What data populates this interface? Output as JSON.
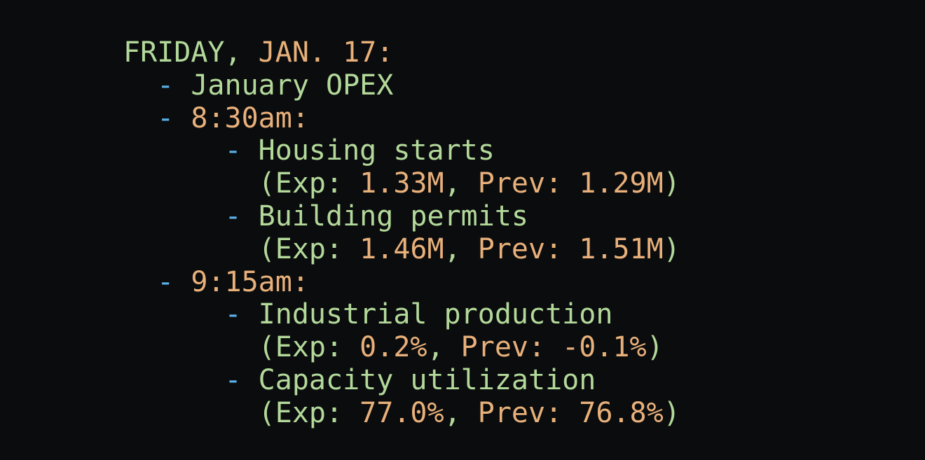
{
  "colors": {
    "text": "#b3d99a",
    "value": "#e8b07a",
    "bullet": "#5ab0e8",
    "background": "#0b0c0e"
  },
  "lines": [
    [
      {
        "t": "FRIDAY, ",
        "c": "g"
      },
      {
        "t": "JAN. 17:",
        "c": "o"
      }
    ],
    [
      {
        "t": "  ",
        "c": "g"
      },
      {
        "t": "-",
        "c": "b"
      },
      {
        "t": " January OPEX",
        "c": "g"
      }
    ],
    [
      {
        "t": "  ",
        "c": "g"
      },
      {
        "t": "-",
        "c": "b"
      },
      {
        "t": " 8:30am:",
        "c": "o"
      }
    ],
    [
      {
        "t": "      ",
        "c": "g"
      },
      {
        "t": "-",
        "c": "b"
      },
      {
        "t": " Housing starts",
        "c": "g"
      }
    ],
    [
      {
        "t": "        (Exp: ",
        "c": "g"
      },
      {
        "t": "1.33M",
        "c": "o"
      },
      {
        "t": ", ",
        "c": "g"
      },
      {
        "t": "Prev: 1.29M",
        "c": "o"
      },
      {
        "t": ")",
        "c": "g"
      }
    ],
    [
      {
        "t": "      ",
        "c": "g"
      },
      {
        "t": "-",
        "c": "b"
      },
      {
        "t": " Building permits",
        "c": "g"
      }
    ],
    [
      {
        "t": "        (Exp: ",
        "c": "g"
      },
      {
        "t": "1.46M",
        "c": "o"
      },
      {
        "t": ", ",
        "c": "g"
      },
      {
        "t": "Prev: 1.51M",
        "c": "o"
      },
      {
        "t": ")",
        "c": "g"
      }
    ],
    [
      {
        "t": "  ",
        "c": "g"
      },
      {
        "t": "-",
        "c": "b"
      },
      {
        "t": " 9:15am:",
        "c": "o"
      }
    ],
    [
      {
        "t": "      ",
        "c": "g"
      },
      {
        "t": "-",
        "c": "b"
      },
      {
        "t": " Industrial production",
        "c": "g"
      }
    ],
    [
      {
        "t": "        (Exp: ",
        "c": "g"
      },
      {
        "t": "0.2%",
        "c": "o"
      },
      {
        "t": ", ",
        "c": "g"
      },
      {
        "t": "Prev: -0.1%",
        "c": "o"
      },
      {
        "t": ")",
        "c": "g"
      }
    ],
    [
      {
        "t": "      ",
        "c": "g"
      },
      {
        "t": "-",
        "c": "b"
      },
      {
        "t": " Capacity utilization",
        "c": "g"
      }
    ],
    [
      {
        "t": "        (Exp: ",
        "c": "g"
      },
      {
        "t": "77.0%",
        "c": "o"
      },
      {
        "t": ", ",
        "c": "g"
      },
      {
        "t": "Prev: 76.8%",
        "c": "o"
      },
      {
        "t": ")",
        "c": "g"
      }
    ]
  ]
}
